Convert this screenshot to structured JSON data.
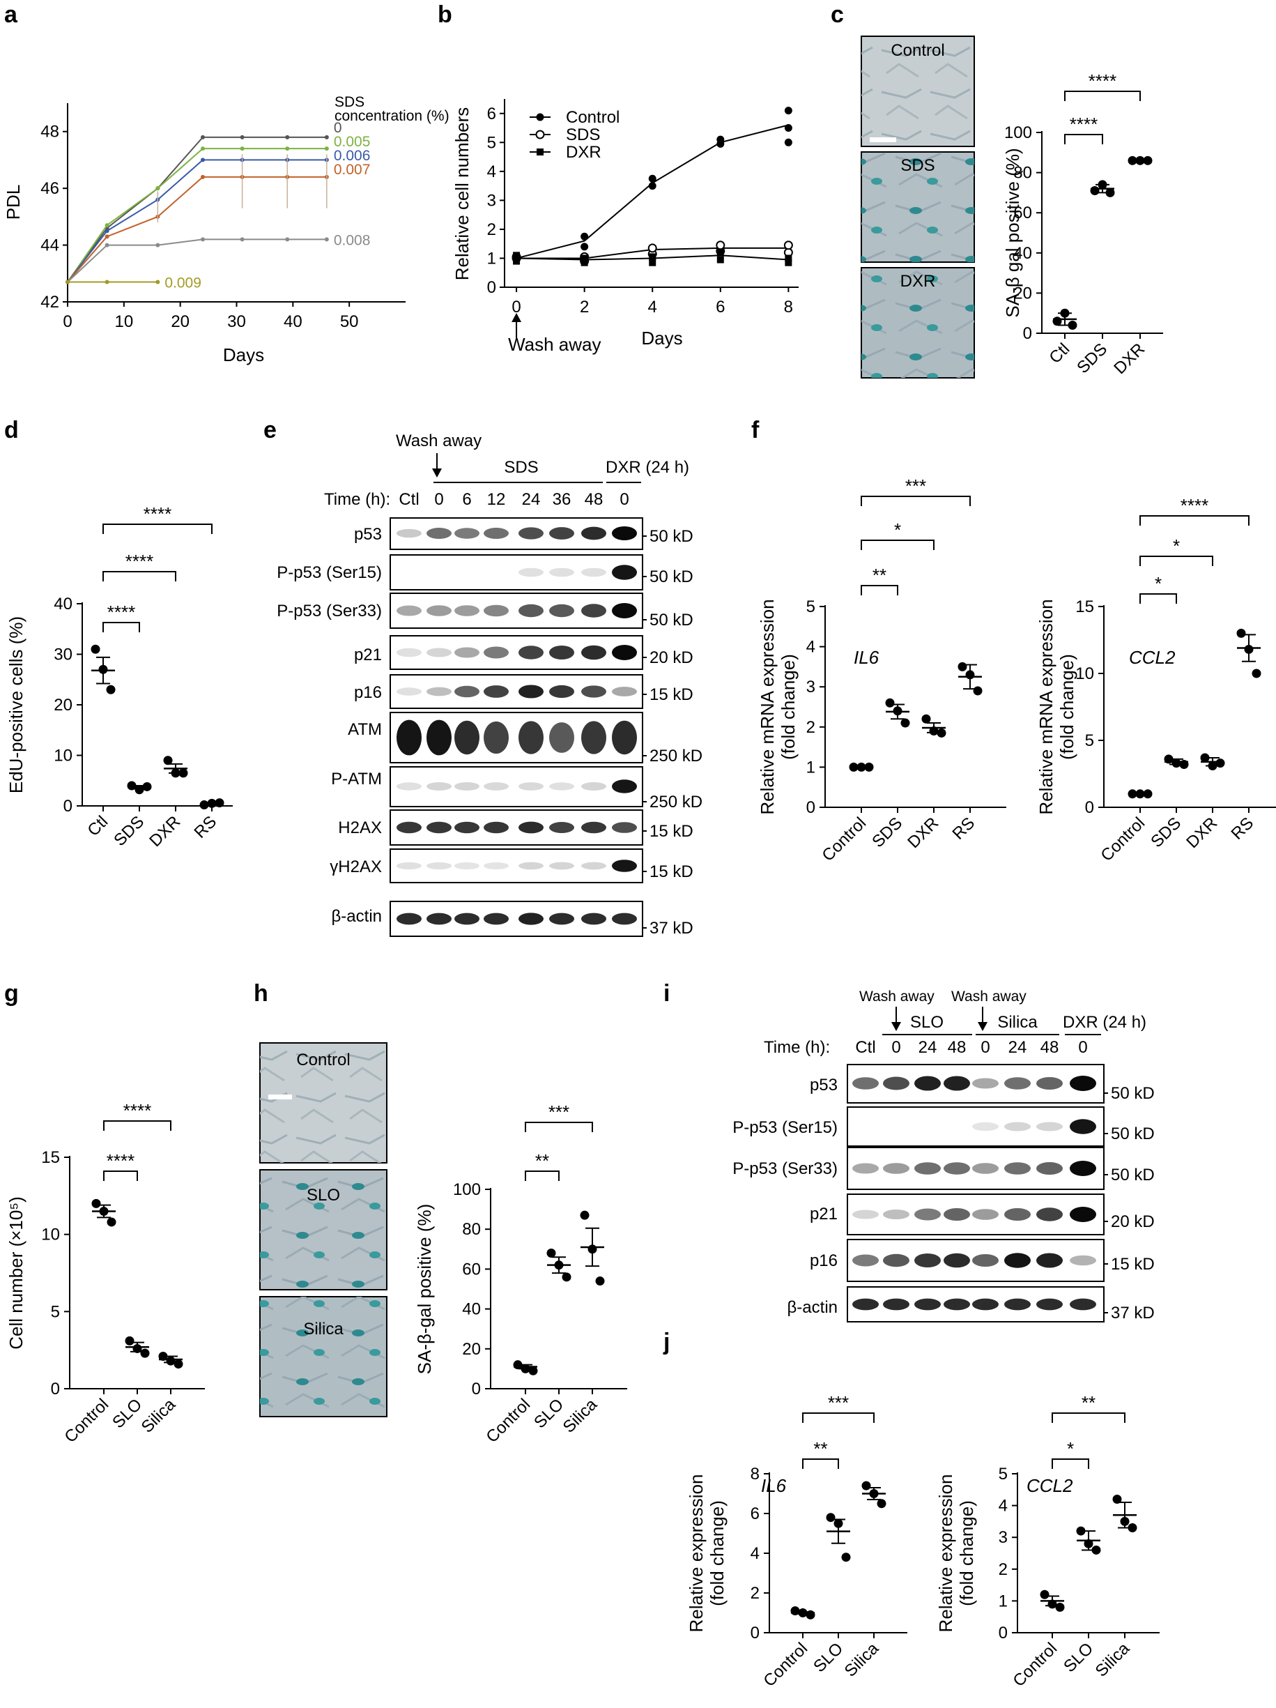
{
  "panel_labels": {
    "a": "a",
    "b": "b",
    "c": "c",
    "d": "d",
    "e": "e",
    "f": "f",
    "g": "g",
    "h": "h",
    "i": "i",
    "j": "j"
  },
  "chart_data": [
    {
      "id": "a",
      "type": "line",
      "xlabel": "Days",
      "ylabel": "PDL",
      "xlim": [
        0,
        60
      ],
      "ylim": [
        42,
        49
      ],
      "xticks": [
        0,
        10,
        20,
        30,
        40,
        50
      ],
      "yticks": [
        42,
        44,
        46,
        48
      ],
      "legend_title": "SDS concentration (%)",
      "series": [
        {
          "name": "0",
          "color": "#555555",
          "x": [
            0,
            7,
            16,
            24,
            31,
            39,
            46
          ],
          "y": [
            42.7,
            44.6,
            46.0,
            47.8,
            47.8,
            47.8,
            47.8
          ]
        },
        {
          "name": "0.005",
          "color": "#7cb342",
          "x": [
            0,
            7,
            16,
            24,
            31,
            39,
            46
          ],
          "y": [
            42.7,
            44.7,
            46.0,
            47.4,
            47.4,
            47.4,
            47.4
          ]
        },
        {
          "name": "0.006",
          "color": "#3a5aa8",
          "x": [
            0,
            7,
            16,
            24,
            31,
            39,
            46
          ],
          "y": [
            42.7,
            44.5,
            45.6,
            47.0,
            47.0,
            47.0,
            47.0
          ]
        },
        {
          "name": "0.007",
          "color": "#c0622a",
          "x": [
            0,
            7,
            16,
            24,
            31,
            39,
            46
          ],
          "y": [
            42.7,
            44.3,
            45.0,
            46.4,
            46.4,
            46.4,
            46.4
          ]
        },
        {
          "name": "0.008",
          "color": "#8a8a8a",
          "x": [
            0,
            7,
            16,
            24,
            31,
            39,
            46
          ],
          "y": [
            42.7,
            44.0,
            44.0,
            44.2,
            44.2,
            44.2,
            44.2
          ]
        },
        {
          "name": "0.009",
          "color": "#a39b24",
          "x": [
            0,
            7,
            16
          ],
          "y": [
            42.7,
            42.7,
            42.7
          ]
        }
      ]
    },
    {
      "id": "b",
      "type": "line",
      "xlabel": "Days",
      "ylabel": "Relative cell numbers",
      "xlim": [
        0,
        8
      ],
      "ylim": [
        0,
        6.5
      ],
      "xticks": [
        0,
        2,
        4,
        6,
        8
      ],
      "yticks": [
        0,
        1,
        2,
        3,
        4,
        5,
        6
      ],
      "annotation": "Wash away",
      "series": [
        {
          "name": "Control",
          "marker": "filled-circle",
          "x": [
            0,
            2,
            4,
            6,
            8
          ],
          "y": [
            1.0,
            1.6,
            3.6,
            5.0,
            5.6
          ],
          "points": [
            [
              0,
              1.0
            ],
            [
              0,
              1.05
            ],
            [
              0,
              0.95
            ],
            [
              2,
              1.4
            ],
            [
              2,
              1.75
            ],
            [
              4,
              3.5
            ],
            [
              4,
              3.75
            ],
            [
              6,
              4.95
            ],
            [
              6,
              5.1
            ],
            [
              8,
              5.0
            ],
            [
              8,
              5.5
            ],
            [
              8,
              6.1
            ]
          ]
        },
        {
          "name": "SDS",
          "marker": "open-circle",
          "x": [
            0,
            2,
            4,
            6,
            8
          ],
          "y": [
            1.0,
            1.0,
            1.3,
            1.35,
            1.35
          ],
          "points": [
            [
              0,
              1.0
            ],
            [
              0,
              1.05
            ],
            [
              2,
              0.9
            ],
            [
              2,
              1.05
            ],
            [
              4,
              1.15
            ],
            [
              4,
              1.35
            ],
            [
              6,
              1.25
            ],
            [
              6,
              1.45
            ],
            [
              8,
              1.2
            ],
            [
              8,
              1.45
            ]
          ]
        },
        {
          "name": "DXR",
          "marker": "filled-square",
          "x": [
            0,
            2,
            4,
            6,
            8
          ],
          "y": [
            1.0,
            0.95,
            1.0,
            1.1,
            0.95
          ],
          "points": [
            [
              0,
              0.9
            ],
            [
              0,
              1.1
            ],
            [
              2,
              0.85
            ],
            [
              2,
              1.0
            ],
            [
              4,
              0.85
            ],
            [
              4,
              1.05
            ],
            [
              6,
              0.95
            ],
            [
              6,
              1.2
            ],
            [
              8,
              0.85
            ],
            [
              8,
              1.0
            ]
          ]
        }
      ]
    },
    {
      "id": "c",
      "type": "scatter",
      "ylabel": "SA-β gal positive (%)",
      "ylim": [
        0,
        100
      ],
      "yticks": [
        0,
        20,
        40,
        60,
        80,
        100
      ],
      "categories": [
        "Ctl",
        "SDS",
        "DXR"
      ],
      "points": [
        [
          6,
          10,
          4
        ],
        [
          71,
          74,
          70
        ],
        [
          86,
          86,
          86
        ]
      ],
      "means": [
        7,
        72,
        86
      ],
      "sems": [
        3,
        2,
        0.5
      ],
      "sig": [
        {
          "from": 0,
          "to": 1,
          "label": "****"
        },
        {
          "from": 0,
          "to": 2,
          "label": "****"
        }
      ],
      "images": [
        "Control",
        "SDS",
        "DXR"
      ]
    },
    {
      "id": "d",
      "type": "scatter",
      "ylabel": "EdU-positive cells (%)",
      "ylim": [
        0,
        40
      ],
      "yticks": [
        0,
        10,
        20,
        30,
        40
      ],
      "categories": [
        "Ctl",
        "SDS",
        "DXR",
        "RS"
      ],
      "points": [
        [
          31,
          27,
          23
        ],
        [
          4,
          3.2,
          3.8
        ],
        [
          9,
          6.5,
          6.5
        ],
        [
          0.2,
          0.5,
          0.6
        ]
      ],
      "means": [
        26.8,
        3.7,
        7.4,
        0.4
      ],
      "sems": [
        2.6,
        0.3,
        0.9,
        0.15
      ],
      "sig": [
        {
          "from": 0,
          "to": 1,
          "label": "****"
        },
        {
          "from": 0,
          "to": 2,
          "label": "****"
        },
        {
          "from": 0,
          "to": 3,
          "label": "****"
        }
      ]
    },
    {
      "id": "f1",
      "type": "scatter",
      "ylabel": "Relative mRNA expression (fold change)",
      "ylim": [
        0,
        5
      ],
      "yticks": [
        0,
        1,
        2,
        3,
        4,
        5
      ],
      "gene": "IL6",
      "categories": [
        "Control",
        "SDS",
        "DXR",
        "RS"
      ],
      "points": [
        [
          1,
          1,
          1
        ],
        [
          2.6,
          2.4,
          2.1
        ],
        [
          2.2,
          1.9,
          1.85
        ],
        [
          3.5,
          3.3,
          2.9
        ]
      ],
      "means": [
        1,
        2.38,
        1.98,
        3.25
      ],
      "sems": [
        0,
        0.18,
        0.12,
        0.3
      ],
      "sig": [
        {
          "from": 0,
          "to": 1,
          "label": "**"
        },
        {
          "from": 0,
          "to": 2,
          "label": "*"
        },
        {
          "from": 0,
          "to": 3,
          "label": "***"
        }
      ]
    },
    {
      "id": "f2",
      "type": "scatter",
      "ylabel": "Relative mRNA expression (fold change)",
      "ylim": [
        0,
        15
      ],
      "yticks": [
        0,
        5,
        10,
        15
      ],
      "gene": "CCL2",
      "categories": [
        "Control",
        "SDS",
        "DXR",
        "RS"
      ],
      "points": [
        [
          1,
          1,
          1
        ],
        [
          3.6,
          3.3,
          3.2
        ],
        [
          3.7,
          3.1,
          3.3
        ],
        [
          13,
          11.8,
          10
        ]
      ],
      "means": [
        1,
        3.4,
        3.4,
        11.9
      ],
      "sems": [
        0,
        0.2,
        0.3,
        1.0
      ],
      "sig": [
        {
          "from": 0,
          "to": 1,
          "label": "*"
        },
        {
          "from": 0,
          "to": 2,
          "label": "*"
        },
        {
          "from": 0,
          "to": 3,
          "label": "****"
        }
      ]
    },
    {
      "id": "g",
      "type": "scatter",
      "ylabel": "Cell number (×10⁵)",
      "ylim": [
        0,
        15
      ],
      "yticks": [
        0,
        5,
        10,
        15
      ],
      "categories": [
        "Control",
        "SLO",
        "Silica"
      ],
      "points": [
        [
          12,
          11.5,
          10.8
        ],
        [
          3.1,
          2.6,
          2.3
        ],
        [
          2.1,
          1.8,
          1.6
        ]
      ],
      "means": [
        11.5,
        2.7,
        1.9
      ],
      "sems": [
        0.4,
        0.3,
        0.2
      ],
      "sig": [
        {
          "from": 0,
          "to": 1,
          "label": "****"
        },
        {
          "from": 0,
          "to": 2,
          "label": "****"
        }
      ]
    },
    {
      "id": "h",
      "type": "scatter",
      "ylabel": "SA-β-gal positive (%)",
      "ylim": [
        0,
        100
      ],
      "yticks": [
        0,
        20,
        40,
        60,
        80,
        100
      ],
      "categories": [
        "Control",
        "SLO",
        "Silica"
      ],
      "points": [
        [
          12,
          10,
          9
        ],
        [
          68,
          62,
          56
        ],
        [
          87,
          70,
          54
        ]
      ],
      "means": [
        11,
        62,
        71
      ],
      "sems": [
        1,
        4,
        9.5
      ],
      "sig": [
        {
          "from": 0,
          "to": 1,
          "label": "**"
        },
        {
          "from": 0,
          "to": 2,
          "label": "***"
        }
      ],
      "images": [
        "Control",
        "SLO",
        "Silica"
      ]
    },
    {
      "id": "j1",
      "type": "scatter",
      "ylabel": "Relative expression (fold change)",
      "ylim": [
        0,
        8
      ],
      "yticks": [
        0,
        2,
        4,
        6,
        8
      ],
      "gene": "IL6",
      "categories": [
        "Control",
        "SLO",
        "Silica"
      ],
      "points": [
        [
          1.1,
          1.0,
          0.9
        ],
        [
          5.8,
          5.5,
          3.8
        ],
        [
          7.4,
          7.0,
          6.5
        ]
      ],
      "means": [
        1.0,
        5.1,
        7.0
      ],
      "sems": [
        0.05,
        0.6,
        0.3
      ],
      "sig": [
        {
          "from": 0,
          "to": 1,
          "label": "**"
        },
        {
          "from": 0,
          "to": 2,
          "label": "***"
        }
      ]
    },
    {
      "id": "j2",
      "type": "scatter",
      "ylabel": "Relative expression (fold change)",
      "ylim": [
        0,
        5
      ],
      "yticks": [
        0,
        1,
        2,
        3,
        4,
        5
      ],
      "gene": "CCL2",
      "categories": [
        "Control",
        "SLO",
        "Silica"
      ],
      "points": [
        [
          1.2,
          0.9,
          0.8
        ],
        [
          3.2,
          2.8,
          2.6
        ],
        [
          4.2,
          3.5,
          3.3
        ]
      ],
      "means": [
        1.0,
        2.9,
        3.7
      ],
      "sems": [
        0.15,
        0.3,
        0.4
      ],
      "sig": [
        {
          "from": 0,
          "to": 1,
          "label": "*"
        },
        {
          "from": 0,
          "to": 2,
          "label": "**"
        }
      ]
    }
  ],
  "blot_e": {
    "wash_away": "Wash away",
    "group_sds": "SDS",
    "group_dxr": "DXR (24 h)",
    "time_label": "Time (h):",
    "lanes": [
      "Ctl",
      "0",
      "6",
      "12",
      "24",
      "36",
      "48",
      "0"
    ],
    "rows": [
      {
        "label": "p53",
        "size": "50 kD",
        "intensity": [
          0.15,
          0.55,
          0.5,
          0.55,
          0.7,
          0.75,
          0.85,
          1.0
        ]
      },
      {
        "label": "P-p53 (Ser15)",
        "size": "50 kD",
        "intensity": [
          0,
          0,
          0,
          0,
          0.05,
          0.05,
          0.05,
          0.95
        ]
      },
      {
        "label": "P-p53 (Ser33)",
        "size": "50 kD",
        "intensity": [
          0.3,
          0.35,
          0.35,
          0.45,
          0.65,
          0.65,
          0.75,
          1.0
        ]
      },
      {
        "label": "p21",
        "size": "20 kD",
        "intensity": [
          0.05,
          0.1,
          0.3,
          0.5,
          0.75,
          0.8,
          0.85,
          1.0
        ]
      },
      {
        "label": "p16",
        "size": "15 kD",
        "intensity": [
          0.05,
          0.2,
          0.6,
          0.75,
          0.9,
          0.8,
          0.7,
          0.3
        ]
      },
      {
        "label": "ATM",
        "size": "250 kD",
        "intensity": [
          0.95,
          0.95,
          0.85,
          0.75,
          0.8,
          0.65,
          0.8,
          0.85
        ]
      },
      {
        "label": "P-ATM",
        "size": "250 kD",
        "intensity": [
          0.05,
          0.1,
          0.1,
          0.08,
          0.08,
          0.05,
          0.1,
          0.95
        ]
      },
      {
        "label": "H2AX",
        "size": "15 kD",
        "intensity": [
          0.8,
          0.8,
          0.8,
          0.8,
          0.85,
          0.75,
          0.8,
          0.7
        ]
      },
      {
        "label": "γH2AX",
        "size": "15 kD",
        "intensity": [
          0.05,
          0.05,
          0.03,
          0.03,
          0.1,
          0.1,
          0.1,
          0.95
        ]
      },
      {
        "label": "β-actin",
        "size": "37 kD",
        "intensity": [
          0.85,
          0.85,
          0.85,
          0.85,
          0.9,
          0.85,
          0.85,
          0.85
        ]
      }
    ]
  },
  "blot_i": {
    "wash_away_1": "Wash away",
    "wash_away_2": "Wash away",
    "group_slo": "SLO",
    "group_silica": "Silica",
    "group_dxr": "DXR (24 h)",
    "time_label": "Time (h):",
    "lanes": [
      "Ctl",
      "0",
      "24",
      "48",
      "0",
      "24",
      "48",
      "0"
    ],
    "rows": [
      {
        "label": "p53",
        "size": "50 kD",
        "intensity": [
          0.55,
          0.7,
          0.9,
          0.9,
          0.3,
          0.55,
          0.6,
          1.0
        ]
      },
      {
        "label": "P-p53 (Ser15)",
        "size": "50 kD",
        "intensity": [
          0,
          0,
          0,
          0,
          0.03,
          0.1,
          0.1,
          0.95
        ]
      },
      {
        "label": "P-p53 (Ser33)",
        "size": "50 kD",
        "intensity": [
          0.3,
          0.35,
          0.55,
          0.55,
          0.35,
          0.55,
          0.6,
          1.0
        ]
      },
      {
        "label": "p21",
        "size": "20 kD",
        "intensity": [
          0.1,
          0.2,
          0.5,
          0.6,
          0.35,
          0.6,
          0.75,
          1.0
        ]
      },
      {
        "label": "p16",
        "size": "15 kD",
        "intensity": [
          0.5,
          0.65,
          0.8,
          0.85,
          0.6,
          0.95,
          0.9,
          0.25
        ]
      },
      {
        "label": "β-actin",
        "size": "37 kD",
        "intensity": [
          0.85,
          0.85,
          0.85,
          0.85,
          0.85,
          0.85,
          0.85,
          0.85
        ]
      }
    ]
  }
}
